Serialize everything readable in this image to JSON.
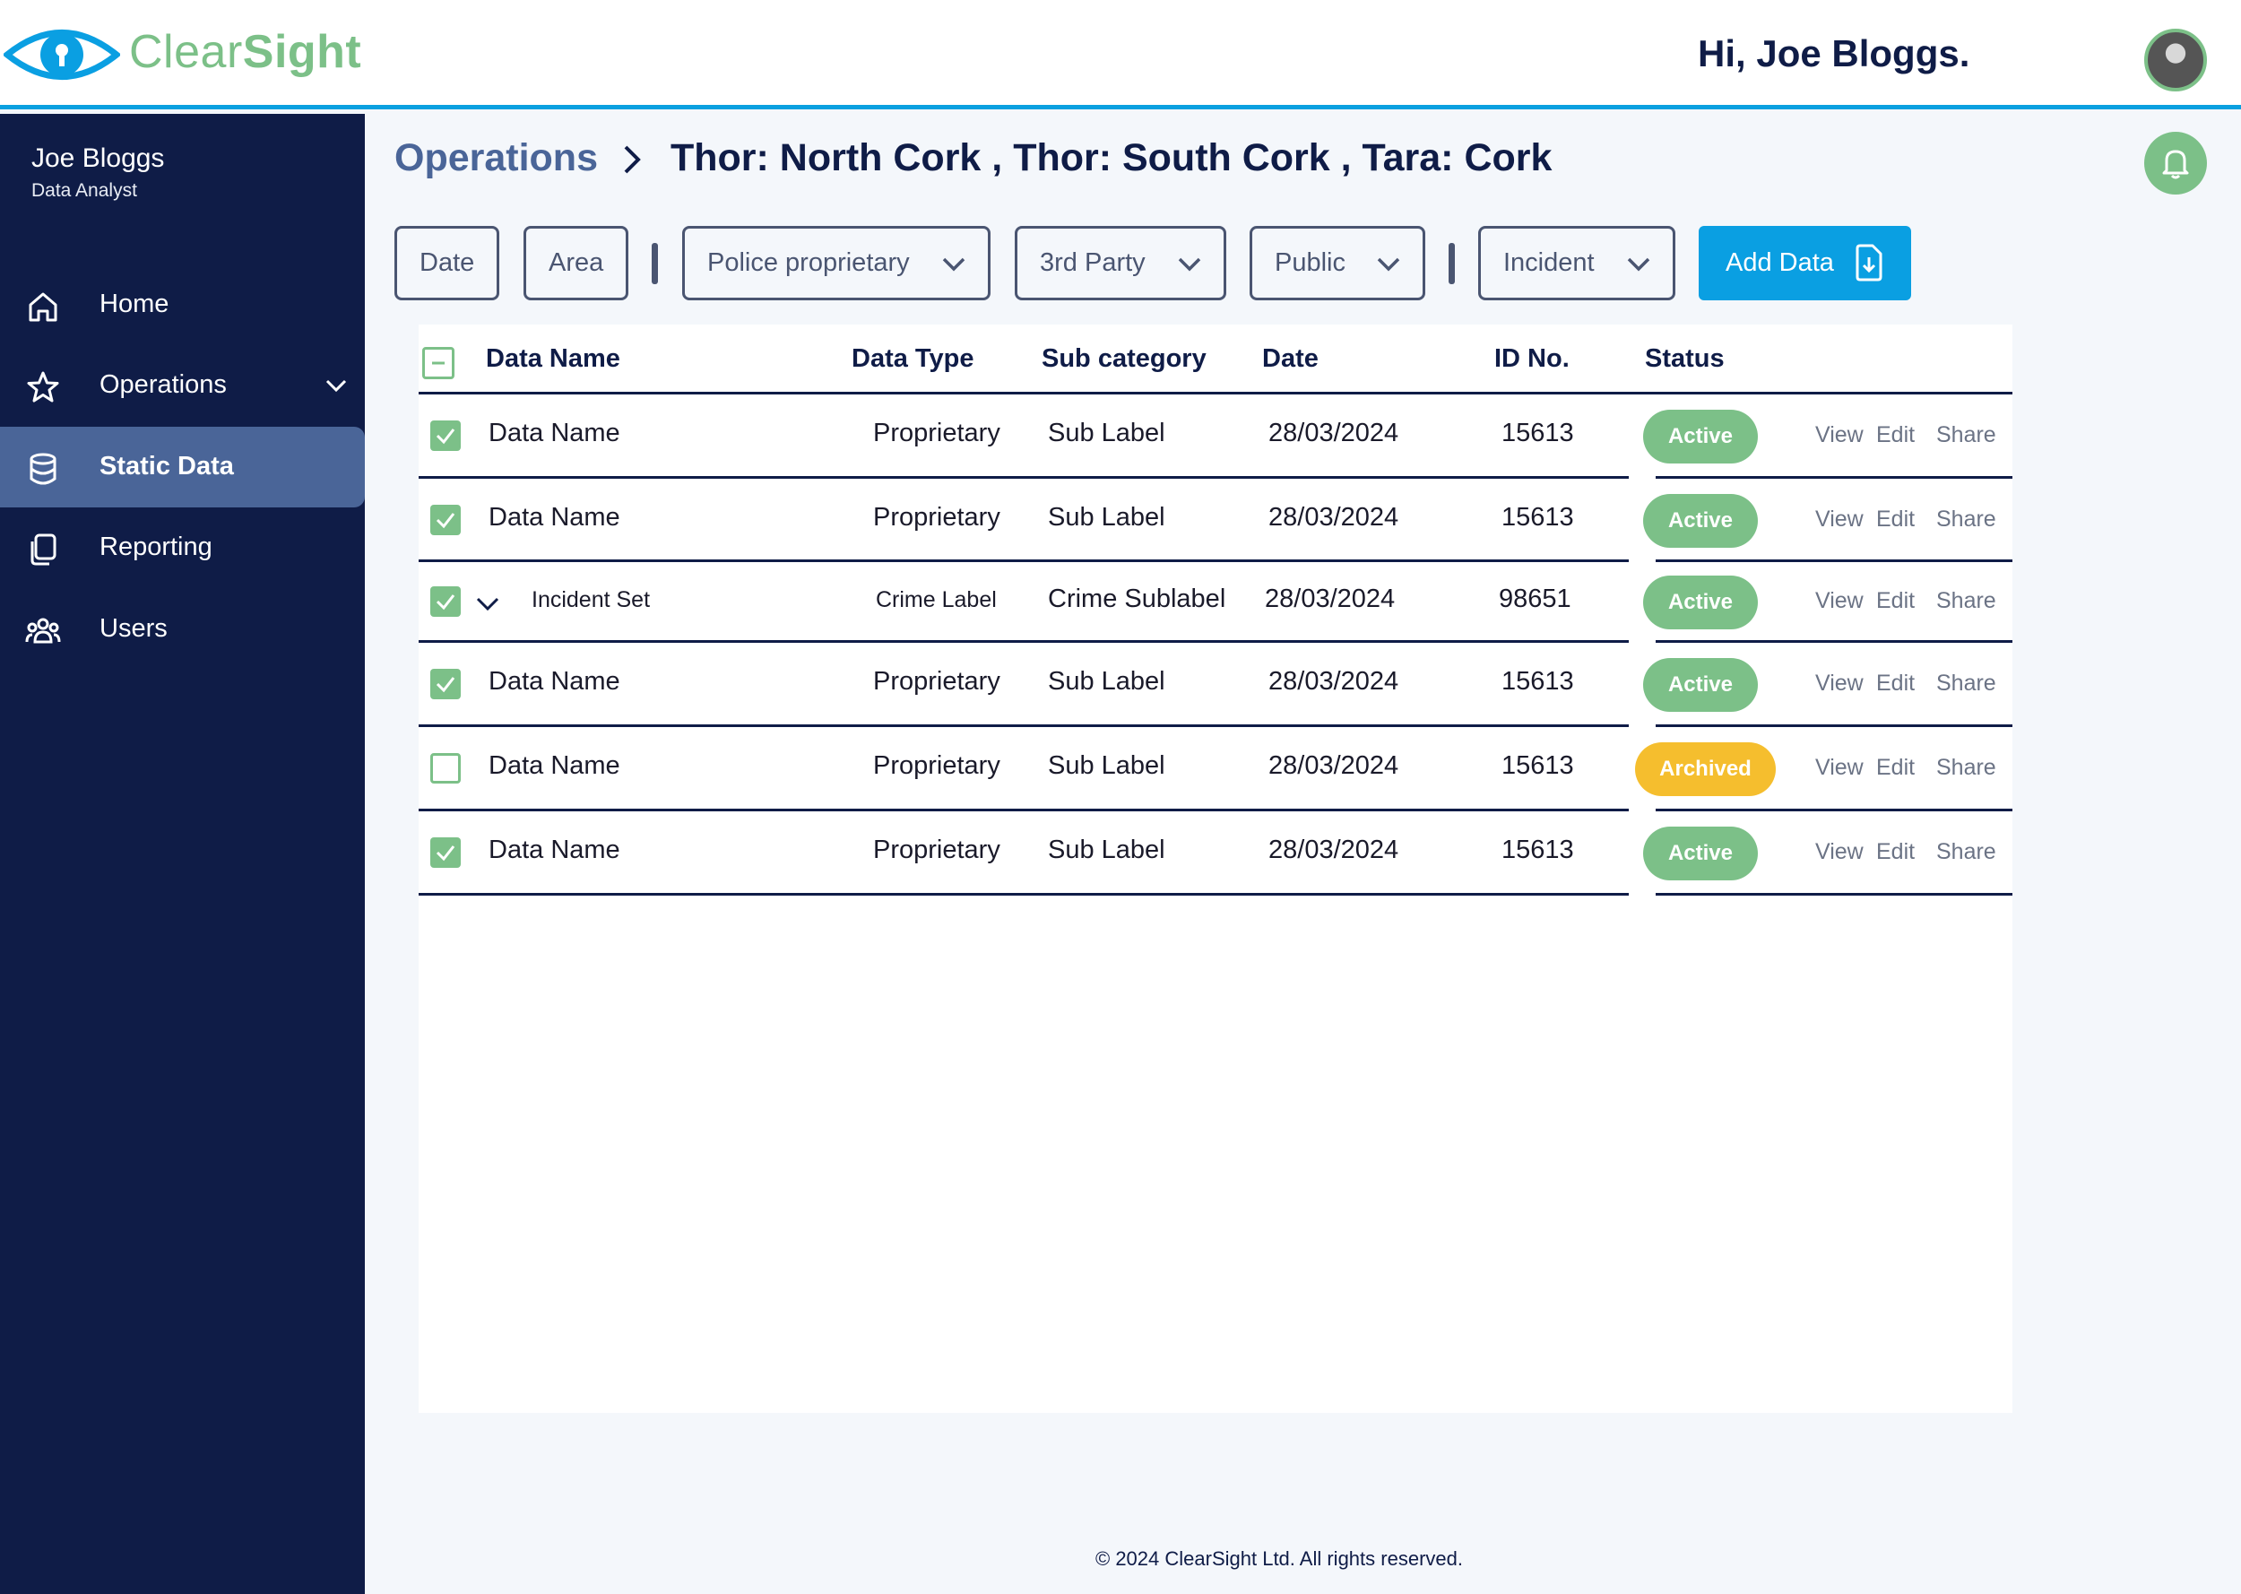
{
  "brand": {
    "name_part1": "Clear",
    "name_part2": "Sight"
  },
  "header": {
    "greeting": "Hi, Joe Bloggs."
  },
  "user": {
    "name": "Joe Bloggs",
    "role": "Data Analyst"
  },
  "sidebar": {
    "items": [
      {
        "label": "Home",
        "icon": "home-icon"
      },
      {
        "label": "Operations",
        "icon": "star-icon"
      },
      {
        "label": "Static Data",
        "icon": "database-icon",
        "active": true
      },
      {
        "label": "Reporting",
        "icon": "documents-icon"
      },
      {
        "label": "Users",
        "icon": "users-icon"
      }
    ]
  },
  "breadcrumb": {
    "root": "Operations",
    "path": "Thor: North Cork ,  Thor: South Cork ,  Tara: Cork"
  },
  "filters": {
    "date": "Date",
    "area": "Area",
    "police": "Police proprietary",
    "third_party": "3rd Party",
    "public": "Public",
    "incident": "Incident",
    "add_data": "Add Data"
  },
  "table": {
    "headers": {
      "name": "Data Name",
      "type": "Data Type",
      "sub": "Sub category",
      "date": "Date",
      "id": "ID No.",
      "status": "Status"
    },
    "actions": {
      "view": "View",
      "edit": "Edit",
      "share": "Share"
    },
    "rows": [
      {
        "checked": true,
        "name": "Data Name",
        "type": "Proprietary",
        "sub": "Sub Label",
        "date": "28/03/2024",
        "id": "15613",
        "status": "Active"
      },
      {
        "checked": true,
        "name": "Data Name",
        "type": "Proprietary",
        "sub": "Sub Label",
        "date": "28/03/2024",
        "id": "15613",
        "status": "Active"
      },
      {
        "checked": true,
        "name": "Incident Set",
        "type": "Crime Label",
        "sub": "Crime Sublabel",
        "date": "28/03/2024",
        "id": "98651",
        "status": "Active",
        "expandable": true
      },
      {
        "checked": true,
        "name": "Data Name",
        "type": "Proprietary",
        "sub": "Sub Label",
        "date": "28/03/2024",
        "id": "15613",
        "status": "Active"
      },
      {
        "checked": false,
        "name": "Data Name",
        "type": "Proprietary",
        "sub": "Sub Label",
        "date": "28/03/2024",
        "id": "15613",
        "status": "Archived"
      },
      {
        "checked": true,
        "name": "Data Name",
        "type": "Proprietary",
        "sub": "Sub Label",
        "date": "28/03/2024",
        "id": "15613",
        "status": "Active"
      }
    ]
  },
  "footer": {
    "text": "© 2024 ClearSight Ltd. All rights reserved."
  },
  "colors": {
    "navy": "#0f1c47",
    "green": "#7cc088",
    "blue": "#0a9fe2",
    "amber": "#f5be2e",
    "nav_active": "#4a6598"
  }
}
